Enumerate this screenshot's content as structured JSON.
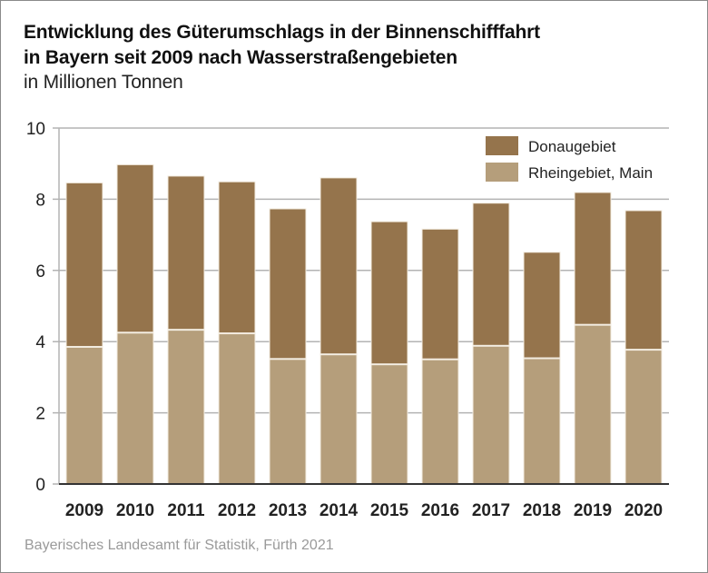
{
  "title_line1": "Entwicklung des Güterumschlags in der Binnenschifffahrt",
  "title_line2": "in Bayern seit 2009 nach Wasserstraßengebieten",
  "subtitle": "in Millionen Tonnen",
  "source": "Bayerisches Landesamt für Statistik, Fürth 2021",
  "colors": {
    "donau": "#95744c",
    "rhein": "#b59e7b",
    "grid": "#b3b3b3",
    "axis": "#333333"
  },
  "chart_data": {
    "type": "bar",
    "stacked": true,
    "title": "Entwicklung des Güterumschlags in der Binnenschifffahrt in Bayern seit 2009 nach Wasserstraßengebieten",
    "ylabel": "in Millionen Tonnen",
    "xlabel": "",
    "ylim": [
      0,
      10
    ],
    "yticks": [
      0,
      2,
      4,
      6,
      8,
      10
    ],
    "grid": true,
    "legend_position": "top-right",
    "categories": [
      "2009",
      "2010",
      "2011",
      "2012",
      "2013",
      "2014",
      "2015",
      "2016",
      "2017",
      "2018",
      "2019",
      "2020"
    ],
    "series": [
      {
        "name": "Rheingebiet, Main",
        "color": "#b59e7b",
        "values": [
          3.84,
          4.24,
          4.32,
          4.22,
          3.5,
          3.63,
          3.35,
          3.49,
          3.87,
          3.52,
          4.46,
          3.76
        ]
      },
      {
        "name": "Donaugebiet",
        "color": "#95744c",
        "values": [
          4.62,
          4.73,
          4.33,
          4.27,
          4.23,
          4.97,
          4.02,
          3.67,
          4.02,
          2.99,
          3.73,
          3.92
        ]
      }
    ],
    "legend": [
      "Donaugebiet",
      "Rheingebiet, Main"
    ]
  }
}
